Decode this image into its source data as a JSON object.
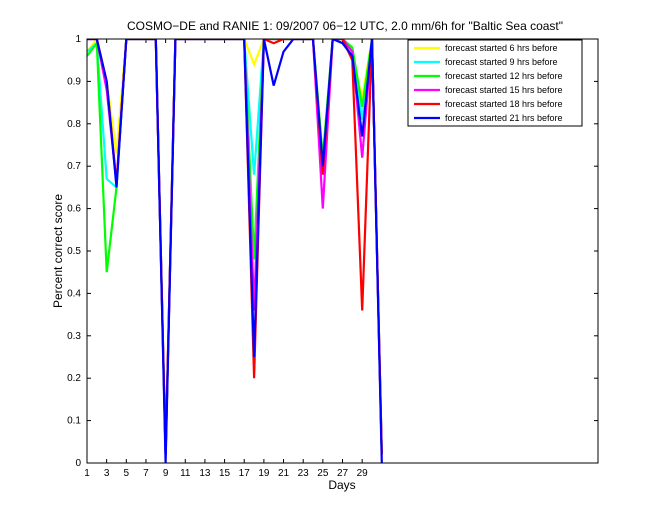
{
  "chart_data": {
    "type": "line",
    "title": "COSMO−DE and RANIE 1: 09/2007 06−12 UTC, 2.0 mm/6h for \"Baltic Sea coast\"",
    "xlabel": "Days",
    "ylabel": "Percent correct score",
    "xlim": [
      1,
      53
    ],
    "ylim": [
      0,
      1
    ],
    "x_ticks": [
      1,
      3,
      5,
      7,
      9,
      11,
      13,
      15,
      17,
      19,
      21,
      23,
      25,
      27,
      29
    ],
    "y_ticks": [
      "0",
      "0.1",
      "0.2",
      "0.3",
      "0.4",
      "0.5",
      "0.6",
      "0.7",
      "0.8",
      "0.9",
      "1"
    ],
    "grid": false,
    "legend_position": "top-right",
    "series": [
      {
        "name": "forecast started 6 hrs before",
        "color": "#ffff00",
        "x": [
          1,
          2,
          3,
          4,
          5,
          6,
          7,
          8,
          9,
          10,
          11,
          12,
          13,
          14,
          15,
          16,
          17,
          18,
          19,
          20,
          21,
          22,
          23,
          24,
          25,
          26,
          27,
          28,
          29,
          30,
          31
        ],
        "y": [
          0.97,
          1,
          0.9,
          0.73,
          1,
          1,
          1,
          1,
          0.03,
          1,
          1,
          1,
          1,
          1,
          1,
          1,
          1,
          0.94,
          1,
          1,
          1,
          1,
          1,
          1,
          0.72,
          1,
          1,
          0.96,
          0.86,
          1,
          0.02
        ]
      },
      {
        "name": "forecast started 9 hrs before",
        "color": "#00ffff",
        "x": [
          1,
          2,
          3,
          4,
          5,
          6,
          7,
          8,
          9,
          10,
          11,
          12,
          13,
          14,
          15,
          16,
          17,
          18,
          19,
          20,
          21,
          22,
          23,
          24,
          25,
          26,
          27,
          28,
          29,
          30,
          31
        ],
        "y": [
          0.97,
          0.99,
          0.67,
          0.65,
          1,
          1,
          1,
          1,
          0.02,
          1,
          1,
          1,
          1,
          1,
          1,
          1,
          1,
          0.68,
          1,
          1,
          1,
          1,
          1,
          1,
          0.7,
          1,
          1,
          0.97,
          0.81,
          1,
          0.02
        ]
      },
      {
        "name": "forecast started 12 hrs before",
        "color": "#00ff00",
        "x": [
          1,
          2,
          3,
          4,
          5,
          6,
          7,
          8,
          9,
          10,
          11,
          12,
          13,
          14,
          15,
          16,
          17,
          18,
          19,
          20,
          21,
          22,
          23,
          24,
          25,
          26,
          27,
          28,
          29,
          30,
          31
        ],
        "y": [
          0.96,
          0.99,
          0.45,
          0.65,
          1,
          1,
          1,
          1,
          0.02,
          1,
          1,
          1,
          1,
          1,
          1,
          1,
          1,
          0.48,
          1,
          1,
          1,
          1,
          1,
          1,
          0.72,
          1,
          1,
          0.98,
          0.84,
          1,
          0.02
        ]
      },
      {
        "name": "forecast started 15 hrs before",
        "color": "#ff00ff",
        "x": [
          1,
          2,
          3,
          4,
          5,
          6,
          7,
          8,
          9,
          10,
          11,
          12,
          13,
          14,
          15,
          16,
          17,
          18,
          19,
          20,
          21,
          22,
          23,
          24,
          25,
          26,
          27,
          28,
          29,
          30,
          31
        ],
        "y": [
          1,
          1,
          0.88,
          0.66,
          1,
          1,
          1,
          1,
          0.02,
          1,
          1,
          1,
          1,
          1,
          1,
          1,
          1,
          0.36,
          1,
          1,
          1,
          1,
          1,
          1,
          0.6,
          1,
          1,
          0.97,
          0.72,
          1,
          0.02
        ]
      },
      {
        "name": "forecast started 18 hrs before",
        "color": "#ff0000",
        "x": [
          1,
          2,
          3,
          4,
          5,
          6,
          7,
          8,
          9,
          10,
          11,
          12,
          13,
          14,
          15,
          16,
          17,
          18,
          19,
          20,
          21,
          22,
          23,
          24,
          25,
          26,
          27,
          28,
          29,
          30,
          31
        ],
        "y": [
          1,
          1,
          0.9,
          0.66,
          1,
          1,
          1,
          1,
          0.02,
          1,
          1,
          1,
          1,
          1,
          1,
          1,
          1,
          0.2,
          1,
          0.99,
          1,
          1,
          1,
          1,
          0.68,
          1,
          1,
          0.95,
          0.36,
          1,
          0.02
        ]
      },
      {
        "name": "forecast started 21 hrs before",
        "color": "#0000ff",
        "x": [
          1,
          2,
          3,
          4,
          5,
          6,
          7,
          8,
          9,
          10,
          11,
          12,
          13,
          14,
          15,
          16,
          17,
          18,
          19,
          20,
          21,
          22,
          23,
          24,
          25,
          26,
          27,
          28,
          29,
          30,
          31
        ],
        "y": [
          1,
          1,
          0.9,
          0.65,
          1,
          1,
          1,
          1,
          0.0,
          1,
          1,
          1,
          1,
          1,
          1,
          1,
          1,
          0.25,
          1,
          0.89,
          0.97,
          1,
          1,
          1,
          0.7,
          1,
          0.99,
          0.96,
          0.77,
          1,
          0.0
        ]
      }
    ]
  }
}
